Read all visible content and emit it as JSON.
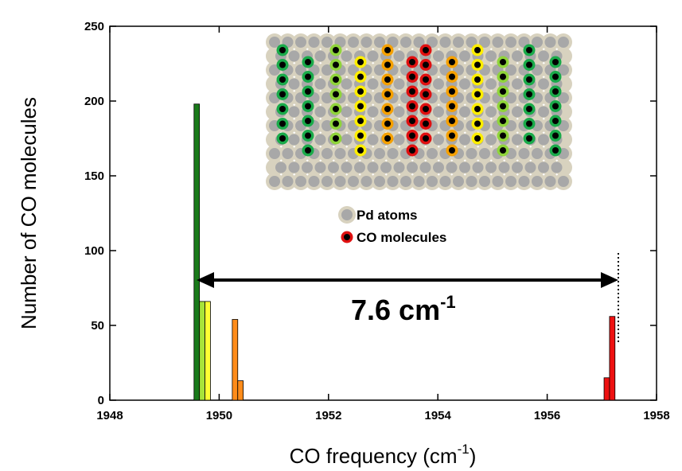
{
  "chart_data": {
    "type": "bar",
    "x": [
      1949.59,
      1949.69,
      1949.79,
      1950.29,
      1950.39,
      1957.09,
      1957.19
    ],
    "values": [
      198,
      66,
      66,
      54,
      13,
      15,
      56
    ],
    "colors": [
      "#1a7a1a",
      "#a8e33a",
      "#ffff33",
      "#ff8c1a",
      "#ff8c1a",
      "#ee1111",
      "#ee1111"
    ],
    "xlim": [
      1948,
      1958
    ],
    "xticks": [
      1948,
      1950,
      1952,
      1954,
      1956,
      1958
    ],
    "ylim": [
      0,
      250
    ],
    "yticks": [
      0,
      50,
      100,
      150,
      200,
      250
    ],
    "xlabel_parts": [
      "CO frequency (cm",
      "-1",
      ")"
    ],
    "ylabel": "Number of CO molecules",
    "annotation_parts": [
      "7.6 cm",
      "-1"
    ],
    "inset_legend": [
      "Pd atoms",
      "CO molecules"
    ]
  }
}
